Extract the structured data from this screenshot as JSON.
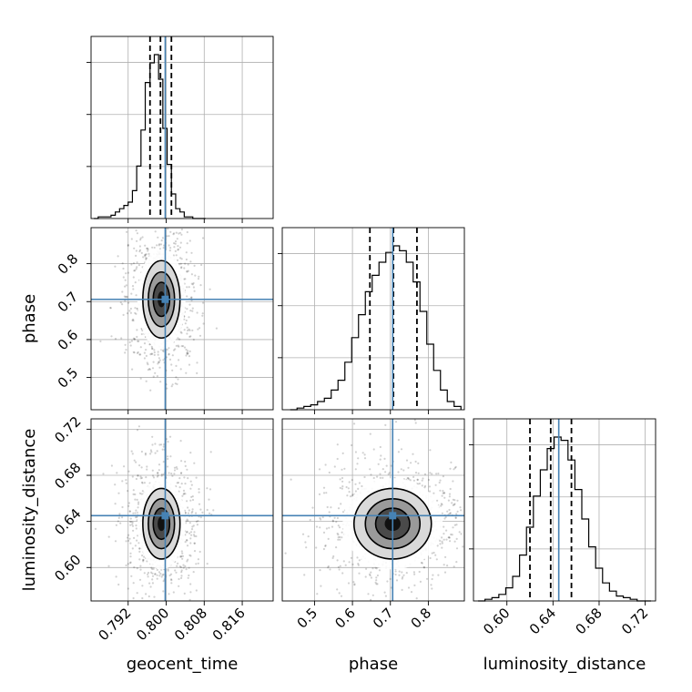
{
  "chart_data": {
    "type": "corner",
    "parameters": [
      "geocent_time",
      "phase",
      "luminosity_distance"
    ],
    "truths": {
      "geocent_time": 0.7998,
      "phase": 0.706,
      "luminosity_distance": 0.645
    },
    "truth_color": "#4682b4",
    "quantiles": {
      "geocent_time": [
        0.7966,
        0.7988,
        0.8011
      ],
      "phase": [
        0.646,
        0.708,
        0.77
      ],
      "luminosity_distance": [
        0.62,
        0.638,
        0.656
      ]
    },
    "ranges": {
      "geocent_time": [
        0.7842,
        0.8225
      ],
      "phase": [
        0.415,
        0.895
      ],
      "luminosity_distance": [
        0.571,
        0.729
      ]
    },
    "ticks": {
      "geocent_time": [
        0.792,
        0.8,
        0.808,
        0.816
      ],
      "phase": [
        0.5,
        0.6,
        0.7,
        0.8
      ],
      "luminosity_distance": [
        0.6,
        0.64,
        0.68,
        0.72
      ]
    },
    "tick_labels": {
      "geocent_time": [
        "0.792",
        "0.800",
        "0.808",
        "0.816"
      ],
      "phase": [
        "0.5",
        "0.6",
        "0.7",
        "0.8"
      ],
      "luminosity_distance": [
        "0.60",
        "0.64",
        "0.68",
        "0.72"
      ]
    },
    "histograms": {
      "geocent_time": {
        "bin_edges": [
          0.7848,
          0.7857,
          0.7866,
          0.7875,
          0.7884,
          0.7893,
          0.7902,
          0.7911,
          0.792,
          0.7929,
          0.7938,
          0.7947,
          0.7956,
          0.7966,
          0.7975,
          0.7984,
          0.7993,
          0.8002,
          0.8011,
          0.802,
          0.8029,
          0.8038,
          0.8047,
          0.8056,
          0.8065,
          0.8074,
          0.8083
        ],
        "counts": [
          0,
          0.01,
          0.01,
          0.01,
          0.02,
          0.04,
          0.06,
          0.08,
          0.1,
          0.17,
          0.32,
          0.54,
          0.83,
          0.95,
          1.0,
          0.85,
          0.55,
          0.33,
          0.15,
          0.06,
          0.04,
          0.01,
          0.01,
          0,
          0,
          0
        ]
      },
      "phase": {
        "bin_edges": [
          0.436,
          0.454,
          0.472,
          0.49,
          0.508,
          0.526,
          0.544,
          0.562,
          0.58,
          0.598,
          0.616,
          0.634,
          0.652,
          0.67,
          0.688,
          0.706,
          0.724,
          0.742,
          0.76,
          0.778,
          0.796,
          0.814,
          0.832,
          0.85,
          0.868,
          0.886
        ],
        "counts": [
          0.0,
          0.01,
          0.02,
          0.03,
          0.05,
          0.07,
          0.12,
          0.18,
          0.29,
          0.44,
          0.58,
          0.72,
          0.82,
          0.9,
          0.96,
          1.0,
          0.97,
          0.9,
          0.78,
          0.6,
          0.4,
          0.24,
          0.12,
          0.05,
          0.02
        ]
      },
      "luminosity_distance": {
        "bin_edges": [
          0.575,
          0.581,
          0.587,
          0.593,
          0.599,
          0.605,
          0.611,
          0.617,
          0.623,
          0.629,
          0.635,
          0.641,
          0.647,
          0.653,
          0.659,
          0.665,
          0.671,
          0.677,
          0.683,
          0.689,
          0.695,
          0.701,
          0.707,
          0.713,
          0.719,
          0.725
        ],
        "counts": [
          0.0,
          0.01,
          0.02,
          0.04,
          0.08,
          0.15,
          0.28,
          0.45,
          0.64,
          0.8,
          0.93,
          1.0,
          0.98,
          0.86,
          0.68,
          0.5,
          0.33,
          0.2,
          0.11,
          0.06,
          0.03,
          0.02,
          0.01,
          0.0,
          0.0
        ]
      }
    },
    "posterior_center": {
      "geocent_time": 0.799,
      "phase": 0.706,
      "luminosity_distance": 0.638
    },
    "posterior_sigma": {
      "geocent_time": 0.0023,
      "phase": 0.06,
      "luminosity_distance": 0.018
    },
    "sigma_levels": [
      0.5,
      1.0,
      1.5,
      2.0
    ],
    "grid": true
  }
}
